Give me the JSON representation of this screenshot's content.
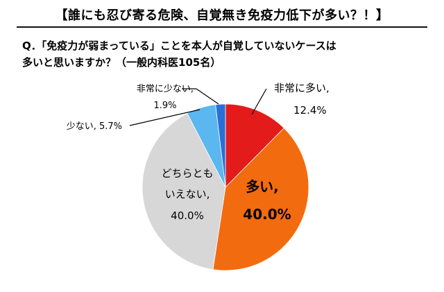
{
  "header": {
    "title": "【誰にも忍び寄る危険、自覚無き免疫力低下が多い？！】"
  },
  "question": {
    "line1": "Q．「免疫力が弱まっている」ことを本人が自覚していないケースは",
    "line2": "多いと思いますか？（一般内科医105名）"
  },
  "chart_data": {
    "type": "pie",
    "start": "12 o'clock",
    "direction": "clockwise",
    "slices": [
      {
        "label": "非常に多い,",
        "value": 12.4,
        "display": "12.4%",
        "color": "#e31b1b",
        "label_lines": [
          "非常に多い,"
        ],
        "label_placement": "outside"
      },
      {
        "label": "多い,",
        "value": 40.0,
        "display": "40.0%",
        "color": "#f26b0f",
        "label_lines": [
          "多い,"
        ],
        "label_placement": "inside"
      },
      {
        "label": "どちらとも いえない,",
        "value": 40.0,
        "display": "40.0%",
        "color": "#d7d7d7",
        "label_lines": [
          "どちらとも",
          "いえない,"
        ],
        "label_placement": "inside"
      },
      {
        "label": "少ない,",
        "value": 5.7,
        "display": "5.7%",
        "color": "#5ab7ef",
        "label_lines": [
          "少ない, 5.7%"
        ],
        "label_placement": "outside-leader"
      },
      {
        "label": "非常に少ない,",
        "value": 1.9,
        "display": "1.9%",
        "color": "#2a6fd6",
        "label_lines": [
          "非常に少ない,"
        ],
        "label_placement": "outside-leader"
      }
    ]
  }
}
